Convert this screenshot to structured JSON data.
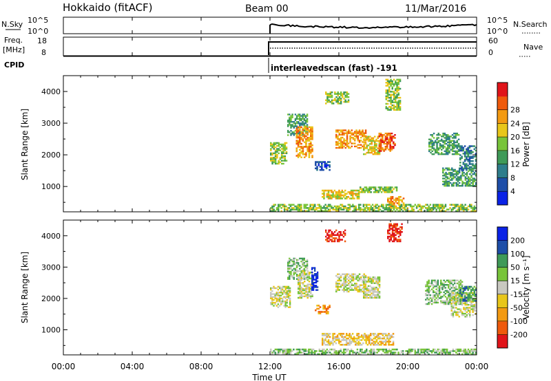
{
  "header": {
    "station": "Hokkaido (fitACF)",
    "beam": "Beam 00",
    "date": "11/Mar/2016"
  },
  "top_panels": {
    "nsky": {
      "label": "N.Sky",
      "tick_hi": "10^5",
      "tick_lo": "10^0"
    },
    "nsearch": {
      "label": "N.Search",
      "tick_hi": "10^5",
      "tick_lo": "10^0"
    },
    "freq": {
      "label_top": "Freq.",
      "label_bot": "[MHz]",
      "tick_hi": "18",
      "tick_lo": "8"
    },
    "nave": {
      "label": "Nave",
      "tick_hi": "60",
      "tick_lo": "0"
    },
    "cpid": {
      "label": "CPID",
      "mode_text": "interleavedscan (fast) -191"
    }
  },
  "x_axis": {
    "label": "Time UT",
    "ticks": [
      "00:00",
      "04:00",
      "08:00",
      "12:00",
      "16:00",
      "20:00",
      "00:00"
    ]
  },
  "colors": {
    "power_scale": [
      "#0a22e6",
      "#1e4ea8",
      "#2e7d8c",
      "#3f9a58",
      "#78c43a",
      "#e8c61a",
      "#f39a12",
      "#ef5a0c",
      "#e0141a"
    ],
    "velocity_scale": [
      "#e0141a",
      "#ef5a0c",
      "#f39a12",
      "#e8c61a",
      "#c8c8c0",
      "#78c43a",
      "#3f9a58",
      "#1e4ea8",
      "#0a22e6"
    ]
  },
  "chart_data": [
    {
      "type": "heatmap",
      "panel": "power",
      "ylabel": "Slant Range [km]",
      "xlabel": "",
      "x_range_hours": [
        0,
        24
      ],
      "ylim": [
        200,
        4500
      ],
      "yticks": [
        1000,
        2000,
        3000,
        4000
      ],
      "colorbar": {
        "label": "Power [dB]",
        "ticks": [
          "4",
          "8",
          "12",
          "16",
          "20",
          "24",
          "28"
        ]
      },
      "patches": [
        {
          "t0": 12.0,
          "t1": 13.0,
          "r0": 1700,
          "r1": 2400,
          "level": 4
        },
        {
          "t0": 13.0,
          "t1": 14.2,
          "r0": 2600,
          "r1": 3300,
          "level": 3
        },
        {
          "t0": 13.5,
          "t1": 14.5,
          "r0": 1900,
          "r1": 2900,
          "level": 6
        },
        {
          "t0": 14.6,
          "t1": 15.5,
          "r0": 1500,
          "r1": 1800,
          "level": 1
        },
        {
          "t0": 15.2,
          "t1": 16.6,
          "r0": 3600,
          "r1": 4000,
          "level": 4
        },
        {
          "t0": 15.8,
          "t1": 17.6,
          "r0": 2200,
          "r1": 2800,
          "level": 6
        },
        {
          "t0": 17.4,
          "t1": 18.4,
          "r0": 2000,
          "r1": 2600,
          "level": 5
        },
        {
          "t0": 18.3,
          "t1": 19.3,
          "r0": 2100,
          "r1": 2700,
          "level": 7
        },
        {
          "t0": 18.7,
          "t1": 19.6,
          "r0": 3400,
          "r1": 4400,
          "level": 4
        },
        {
          "t0": 15.0,
          "t1": 17.2,
          "r0": 600,
          "r1": 900,
          "level": 5
        },
        {
          "t0": 17.2,
          "t1": 19.4,
          "r0": 800,
          "r1": 1000,
          "level": 4
        },
        {
          "t0": 18.8,
          "t1": 19.8,
          "r0": 300,
          "r1": 700,
          "level": 6
        },
        {
          "t0": 21.2,
          "t1": 23.0,
          "r0": 2000,
          "r1": 2700,
          "level": 3
        },
        {
          "t0": 22.0,
          "t1": 24.0,
          "r0": 1000,
          "r1": 1600,
          "level": 3
        },
        {
          "t0": 23.0,
          "t1": 24.0,
          "r0": 1500,
          "r1": 2300,
          "level": 2
        },
        {
          "t0": 12.0,
          "t1": 24.0,
          "r0": 200,
          "r1": 450,
          "level": 4
        }
      ]
    },
    {
      "type": "heatmap",
      "panel": "velocity",
      "ylabel": "Slant Range [km]",
      "xlabel": "Time UT",
      "x_range_hours": [
        0,
        24
      ],
      "ylim": [
        200,
        4500
      ],
      "yticks": [
        1000,
        2000,
        3000,
        4000
      ],
      "colorbar": {
        "label": "Velocity [m s⁻¹]",
        "ticks": [
          "-200",
          "-100",
          "-50",
          "-15",
          "15",
          "50",
          "100",
          "200"
        ]
      },
      "patches": [
        {
          "t0": 12.0,
          "t1": 13.2,
          "r0": 1700,
          "r1": 2400,
          "level": 4
        },
        {
          "t0": 13.0,
          "t1": 14.2,
          "r0": 2600,
          "r1": 3300,
          "level": 5
        },
        {
          "t0": 13.6,
          "t1": 14.5,
          "r0": 2000,
          "r1": 2900,
          "level": 4
        },
        {
          "t0": 14.4,
          "t1": 14.8,
          "r0": 2200,
          "r1": 3000,
          "level": 8
        },
        {
          "t0": 14.6,
          "t1": 15.5,
          "r0": 1500,
          "r1": 1800,
          "level": 2
        },
        {
          "t0": 15.2,
          "t1": 16.4,
          "r0": 3800,
          "r1": 4200,
          "level": 0
        },
        {
          "t0": 15.8,
          "t1": 17.6,
          "r0": 2200,
          "r1": 2800,
          "level": 4
        },
        {
          "t0": 17.4,
          "t1": 18.4,
          "r0": 2000,
          "r1": 2700,
          "level": 4
        },
        {
          "t0": 18.8,
          "t1": 19.7,
          "r0": 3800,
          "r1": 4400,
          "level": 0
        },
        {
          "t0": 15.0,
          "t1": 19.2,
          "r0": 500,
          "r1": 900,
          "level": 3
        },
        {
          "t0": 21.0,
          "t1": 23.2,
          "r0": 1800,
          "r1": 2600,
          "level": 5
        },
        {
          "t0": 22.5,
          "t1": 24.0,
          "r0": 1400,
          "r1": 2200,
          "level": 4
        },
        {
          "t0": 23.0,
          "t1": 24.0,
          "r0": 1900,
          "r1": 2400,
          "level": 6
        },
        {
          "t0": 12.0,
          "t1": 24.0,
          "r0": 200,
          "r1": 400,
          "level": 5
        }
      ]
    }
  ]
}
